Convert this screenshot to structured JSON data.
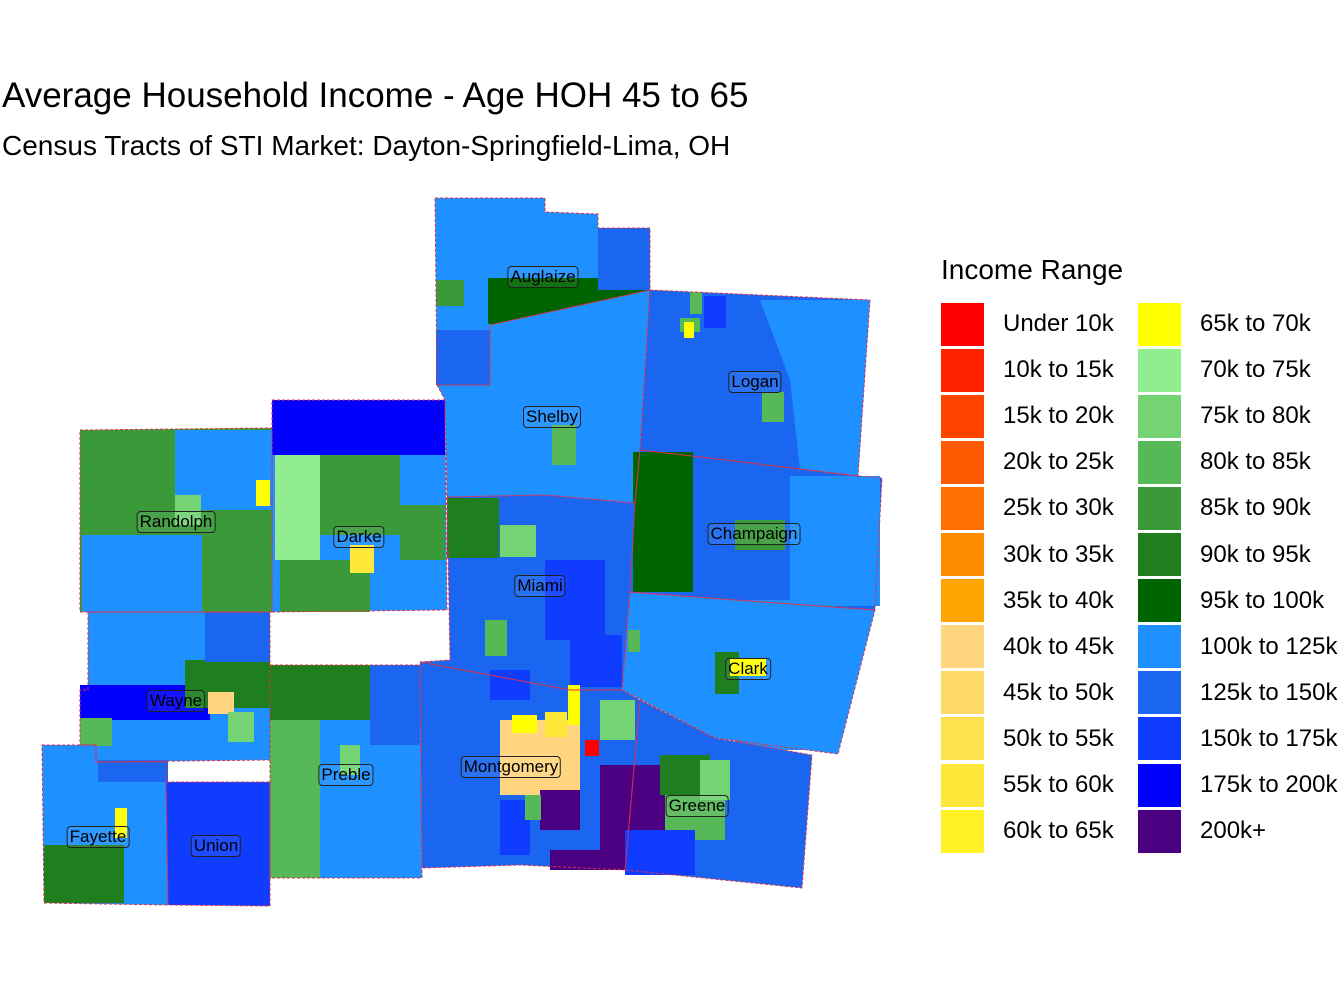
{
  "title": "Average Household Income - Age HOH 45 to 65",
  "subtitle": "Census Tracts of STI Market: Dayton-Springfield-Lima, OH",
  "legend": {
    "title": "Income Range",
    "items": [
      {
        "label": "Under 10k",
        "color": "#ff0000"
      },
      {
        "label": "10k to 15k",
        "color": "#ff2200"
      },
      {
        "label": "15k to 20k",
        "color": "#ff4400"
      },
      {
        "label": "20k to 25k",
        "color": "#ff5a00"
      },
      {
        "label": "25k to 30k",
        "color": "#ff7000"
      },
      {
        "label": "30k to 35k",
        "color": "#ff8c00"
      },
      {
        "label": "35k to 40k",
        "color": "#ffa500"
      },
      {
        "label": "40k to 45k",
        "color": "#ffd580"
      },
      {
        "label": "45k to 50k",
        "color": "#ffd966"
      },
      {
        "label": "50k to 55k",
        "color": "#ffe14d"
      },
      {
        "label": "55k to 60k",
        "color": "#ffe83a"
      },
      {
        "label": "60k to 65k",
        "color": "#fff126"
      },
      {
        "label": "65k to 70k",
        "color": "#ffff00"
      },
      {
        "label": "70k to 75k",
        "color": "#90ee90"
      },
      {
        "label": "75k to 80k",
        "color": "#74d474"
      },
      {
        "label": "80k to 85k",
        "color": "#57b857"
      },
      {
        "label": "85k to 90k",
        "color": "#3a9a3a"
      },
      {
        "label": "90k to 95k",
        "color": "#1f7f1f"
      },
      {
        "label": "95k to 100k",
        "color": "#006400"
      },
      {
        "label": "100k to 125k",
        "color": "#1e90ff"
      },
      {
        "label": "125k to 150k",
        "color": "#1a66f0"
      },
      {
        "label": "150k to 175k",
        "color": "#0f3cff"
      },
      {
        "label": "175k to 200k",
        "color": "#0000ff"
      },
      {
        "label": "200k+",
        "color": "#4b0082"
      }
    ]
  },
  "counties": [
    {
      "name": "Auglaize",
      "fill": "#1e90ff"
    },
    {
      "name": "Logan",
      "fill": "#1a66f0"
    },
    {
      "name": "Shelby",
      "fill": "#1e90ff"
    },
    {
      "name": "Randolph",
      "fill": "#3a9a3a"
    },
    {
      "name": "Darke",
      "fill": "#1e90ff"
    },
    {
      "name": "Champaign",
      "fill": "#1a66f0"
    },
    {
      "name": "Miami",
      "fill": "#1a66f0"
    },
    {
      "name": "Clark",
      "fill": "#1e90ff"
    },
    {
      "name": "Wayne",
      "fill": "#1e90ff"
    },
    {
      "name": "Preble",
      "fill": "#1e90ff"
    },
    {
      "name": "Montgomery",
      "fill": "#1a66f0"
    },
    {
      "name": "Greene",
      "fill": "#1a66f0"
    },
    {
      "name": "Fayette",
      "fill": "#1e90ff"
    },
    {
      "name": "Union",
      "fill": "#0f3cff"
    }
  ]
}
